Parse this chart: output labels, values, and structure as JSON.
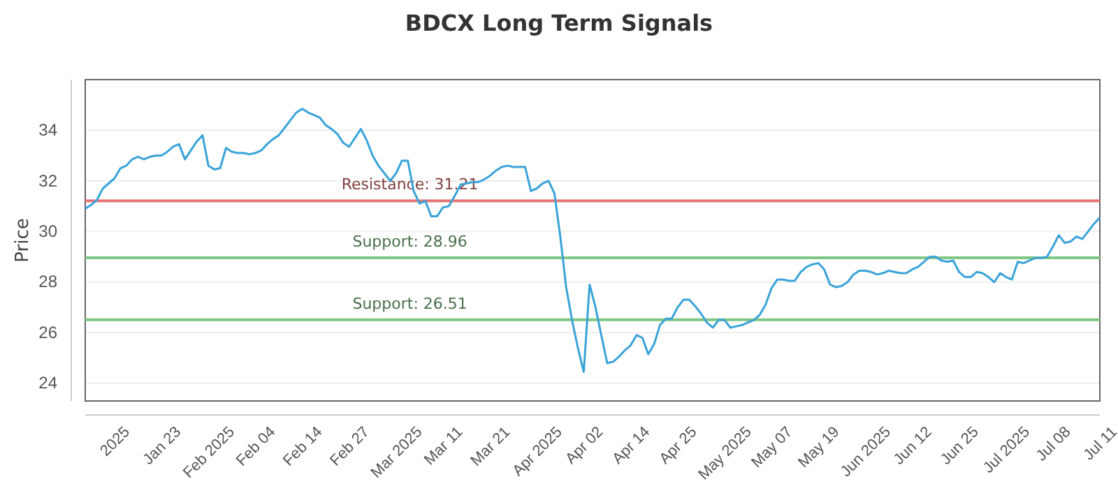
{
  "chart_data": {
    "type": "line",
    "title": "BDCX Long Term Signals",
    "ylabel": "Price",
    "categories": [
      null,
      null,
      null,
      null,
      null,
      "2025",
      null,
      null,
      null,
      null,
      null,
      null,
      null,
      "Jan 23",
      null,
      null,
      null,
      null,
      null,
      null,
      null,
      "Feb 2025",
      null,
      null,
      null,
      null,
      null,
      null,
      null,
      "Feb 04",
      null,
      null,
      null,
      null,
      null,
      null,
      null,
      "Feb 14",
      null,
      null,
      null,
      null,
      null,
      null,
      null,
      "Feb 27",
      null,
      null,
      null,
      null,
      null,
      null,
      null,
      "Mar 2025",
      null,
      null,
      null,
      null,
      null,
      null,
      null,
      "Mar 11",
      null,
      null,
      null,
      null,
      null,
      null,
      null,
      "Mar 21",
      null,
      null,
      null,
      null,
      null,
      null,
      null,
      "Apr 2025",
      null,
      null,
      null,
      null,
      null,
      null,
      null,
      "Apr 02",
      null,
      null,
      null,
      null,
      null,
      null,
      null,
      "Apr 14",
      null,
      null,
      null,
      null,
      null,
      null,
      null,
      "Apr 25",
      null,
      null,
      null,
      null,
      null,
      null,
      null,
      "May 2025",
      null,
      null,
      null,
      null,
      null,
      null,
      null,
      "May 07",
      null,
      null,
      null,
      null,
      null,
      null,
      null,
      "May 19",
      null,
      null,
      null,
      null,
      null,
      null,
      null,
      "Jun 2025",
      null,
      null,
      null,
      null,
      null,
      null,
      null,
      "Jun 12",
      null,
      null,
      null,
      null,
      null,
      null,
      null,
      "Jun 25",
      null,
      null,
      null,
      null,
      null,
      null,
      null,
      "Jul 2025",
      null,
      null,
      null,
      null,
      null,
      null,
      null,
      "Jul 08",
      null,
      null,
      null,
      null,
      null,
      null,
      null,
      "Jul 11"
    ],
    "series": [
      {
        "color": "#3aa3d8",
        "values": [
          30.9,
          31.05,
          31.25,
          31.7,
          31.9,
          32.1,
          32.5,
          32.6,
          32.85,
          32.95,
          32.85,
          32.95,
          33.0,
          33.0,
          33.15,
          33.35,
          33.45,
          32.85,
          33.2,
          33.55,
          33.8,
          32.6,
          32.45,
          32.5,
          33.3,
          33.15,
          33.1,
          33.1,
          33.05,
          33.1,
          33.2,
          33.45,
          33.65,
          33.8,
          34.1,
          34.4,
          34.7,
          34.85,
          34.7,
          34.6,
          34.5,
          34.2,
          34.05,
          33.85,
          33.5,
          33.35,
          33.7,
          34.05,
          33.6,
          33.0,
          32.6,
          32.3,
          32.0,
          32.3,
          32.8,
          32.8,
          31.6,
          31.1,
          31.2,
          30.6,
          30.6,
          30.95,
          31.0,
          31.4,
          31.85,
          31.9,
          31.95,
          31.95,
          32.05,
          32.2,
          32.4,
          32.55,
          32.6,
          32.55,
          32.55,
          32.55,
          31.6,
          31.7,
          31.9,
          32.0,
          31.5,
          29.8,
          27.8,
          26.5,
          25.4,
          24.45,
          27.9,
          27.0,
          25.9,
          24.8,
          24.85,
          25.05,
          25.3,
          25.5,
          25.9,
          25.8,
          25.15,
          25.55,
          26.3,
          26.55,
          26.55,
          27.0,
          27.3,
          27.3,
          27.05,
          26.75,
          26.4,
          26.2,
          26.5,
          26.5,
          26.2,
          26.25,
          26.3,
          26.4,
          26.5,
          26.7,
          27.1,
          27.75,
          28.1,
          28.1,
          28.05,
          28.05,
          28.4,
          28.6,
          28.7,
          28.75,
          28.5,
          27.9,
          27.8,
          27.85,
          28.0,
          28.3,
          28.45,
          28.45,
          28.4,
          28.3,
          28.35,
          28.45,
          28.4,
          28.35,
          28.35,
          28.5,
          28.6,
          28.8,
          29.0,
          29.0,
          28.85,
          28.8,
          28.85,
          28.4,
          28.2,
          28.2,
          28.4,
          28.35,
          28.2,
          28.0,
          28.35,
          28.2,
          28.1,
          28.8,
          28.75,
          28.85,
          28.95,
          28.95,
          29.0,
          29.4,
          29.85,
          29.55,
          29.6,
          29.8,
          29.7,
          30.0,
          30.3,
          30.55
        ]
      }
    ],
    "ylim": [
      23.3,
      36
    ],
    "yticks": [
      24,
      26,
      28,
      30,
      32,
      34
    ],
    "grid": "y",
    "marker": "none",
    "line_style": "solid",
    "ref_lines": [
      {
        "axis": "y",
        "value": 31.21,
        "label": "Resistance: 31.21",
        "color": "#e57373"
      },
      {
        "axis": "y",
        "value": 28.96,
        "label": "Support: 28.96",
        "color": "#81c784"
      },
      {
        "axis": "y",
        "value": 26.51,
        "label": "Support: 26.51",
        "color": "#81c784"
      }
    ]
  }
}
